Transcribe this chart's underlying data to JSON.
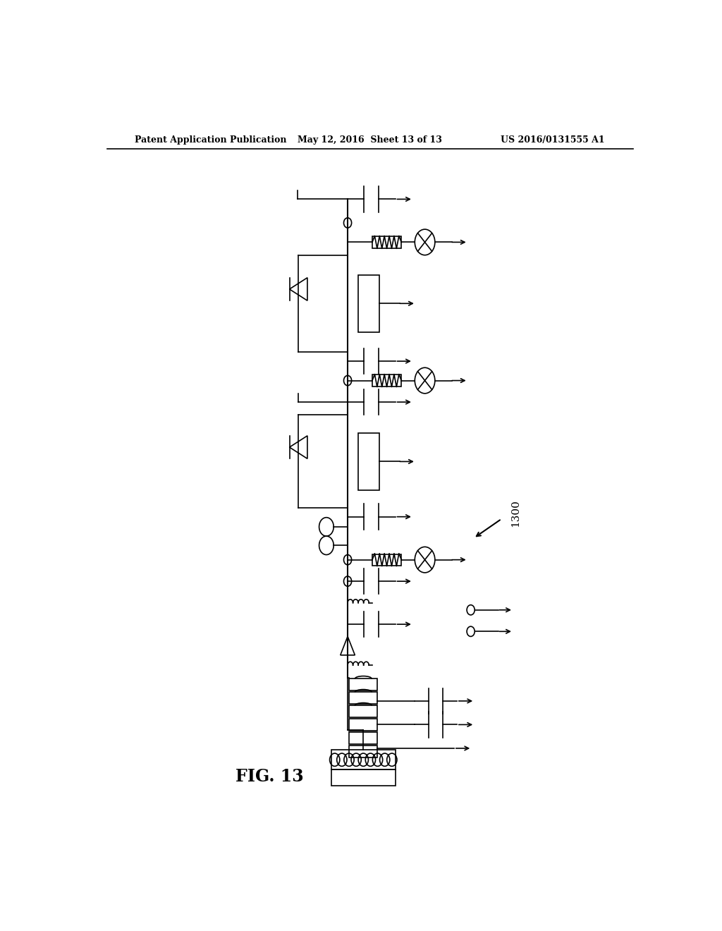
{
  "title_left": "Patent Application Publication",
  "title_mid": "May 12, 2016  Sheet 13 of 13",
  "title_right": "US 2016/0131555 A1",
  "fig_label": "FIG. 13",
  "ref_number": "1300",
  "bg_color": "#ffffff",
  "line_color": "#000000"
}
